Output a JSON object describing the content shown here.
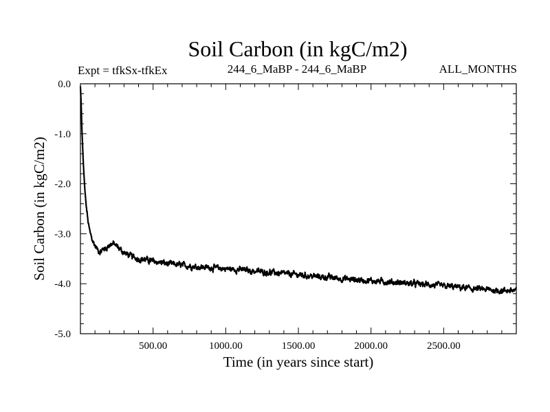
{
  "chart_data": {
    "type": "line",
    "title": "Soil Carbon (in kgC/m2)",
    "subtitle_left": "Expt = tfkSx-tfkEx",
    "subtitle_center": "244_6_MaBP - 244_6_MaBP",
    "subtitle_right": "ALL_MONTHS",
    "xlabel": "Time (in years since start)",
    "ylabel": "Soil Carbon (in kgC/m2)",
    "xlim": [
      0,
      3000
    ],
    "ylim": [
      -5.0,
      0.0
    ],
    "xticks": [
      500,
      1000,
      1500,
      2000,
      2500
    ],
    "xtick_labels": [
      "500.00",
      "1000.00",
      "1500.00",
      "2000.00",
      "2500.00"
    ],
    "yticks": [
      0.0,
      -1.0,
      -2.0,
      -3.0,
      -4.0,
      -5.0
    ],
    "ytick_labels": [
      "0.0",
      "-1.0",
      "-2.0",
      "-3.0",
      "-4.0",
      "-5.0"
    ],
    "series": [
      {
        "name": "Soil Carbon",
        "x": [
          0,
          5,
          10,
          20,
          30,
          40,
          50,
          60,
          70,
          80,
          90,
          100,
          120,
          140,
          160,
          180,
          200,
          230,
          260,
          300,
          350,
          400,
          450,
          500,
          600,
          700,
          800,
          900,
          1000,
          1100,
          1200,
          1300,
          1400,
          1500,
          1600,
          1700,
          1800,
          1900,
          2000,
          2100,
          2200,
          2300,
          2400,
          2500,
          2600,
          2700,
          2800,
          2900,
          3000
        ],
        "y": [
          -0.05,
          -0.4,
          -0.9,
          -1.6,
          -2.1,
          -2.45,
          -2.7,
          -2.9,
          -3.02,
          -3.1,
          -3.18,
          -3.24,
          -3.33,
          -3.36,
          -3.3,
          -3.28,
          -3.22,
          -3.2,
          -3.28,
          -3.38,
          -3.45,
          -3.5,
          -3.52,
          -3.55,
          -3.6,
          -3.63,
          -3.66,
          -3.68,
          -3.7,
          -3.72,
          -3.75,
          -3.77,
          -3.8,
          -3.82,
          -3.85,
          -3.87,
          -3.9,
          -3.92,
          -3.94,
          -3.96,
          -3.98,
          -4.0,
          -4.02,
          -4.05,
          -4.07,
          -4.1,
          -4.12,
          -4.14,
          -4.13
        ],
        "noise_amplitude": 0.04
      }
    ]
  }
}
